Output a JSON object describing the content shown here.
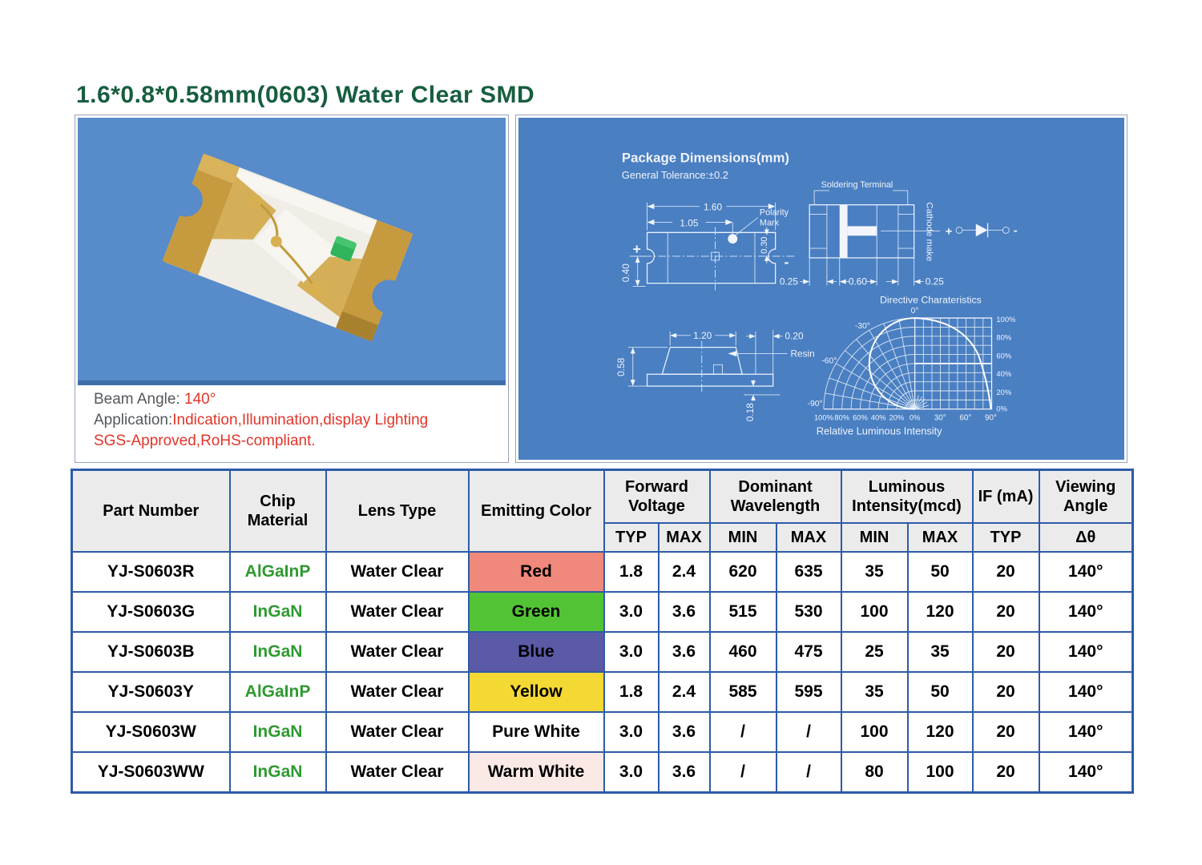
{
  "page": {
    "title": "1.6*0.8*0.58mm(0603)  Water Clear SMD"
  },
  "photo_panel": {
    "beam_label": "Beam Angle: ",
    "beam_value": "140°",
    "app_label": "Application:",
    "app_value": "Indication,Illumination,display Lighting",
    "compliance": "SGS-Approved,RoHS-compliant."
  },
  "dims": {
    "heading": "Package Dimensions(mm)",
    "tolerance": "General Tolerance:±0.2",
    "top_view": {
      "d160": "1.60",
      "d105": "1.05",
      "d040": "0.40",
      "d030": "0.30",
      "polarity": "Polarity",
      "mark": "Mark",
      "plus": "+",
      "minus": "-"
    },
    "pads": {
      "label": "Soldering Terminal",
      "d025l": "0.25",
      "d060": "0.60",
      "d025r": "0.25",
      "cathode": "Cathode make"
    },
    "circuit": {
      "plus": "+",
      "minus": "-"
    },
    "side_view": {
      "d120": "1.20",
      "d020": "0.20",
      "d058": "0.58",
      "d018": "0.18",
      "resin": "Resin"
    },
    "chart": {
      "title": "Directive Charateristics",
      "caption": "Relative Luminous Intensity",
      "a0": "0°",
      "am30": "-30°",
      "am60": "-60°",
      "am90": "-90°",
      "a30": "30°",
      "a60": "60°",
      "a90": "90°",
      "pct": [
        "100%",
        "80%",
        "60%",
        "40%",
        "20%",
        "0%"
      ]
    }
  },
  "table": {
    "headers": {
      "part": "Part Number",
      "chip": "Chip Material",
      "lens": "Lens Type",
      "color": "Emitting Color",
      "fv": "Forward Voltage",
      "dw": "Dominant Wavelength",
      "li": "Luminous Intensity(mcd)",
      "ifma": "IF (mA)",
      "va": "Viewing Angle",
      "typ": "TYP",
      "max": "MAX",
      "min": "MIN",
      "delta": "Δθ"
    },
    "rows": [
      {
        "part": "YJ-S0603R",
        "chip": "AlGaInP",
        "lens": "Water Clear",
        "color": {
          "label": "Red",
          "bg": "#F0897B"
        },
        "values": [
          "1.8",
          "2.4",
          "620",
          "635",
          "35",
          "50",
          "20",
          "140°"
        ]
      },
      {
        "part": "YJ-S0603G",
        "chip": "InGaN",
        "lens": "Water Clear",
        "color": {
          "label": "Green",
          "bg": "#52C335"
        },
        "values": [
          "3.0",
          "3.6",
          "515",
          "530",
          "100",
          "120",
          "20",
          "140°"
        ]
      },
      {
        "part": "YJ-S0603B",
        "chip": "InGaN",
        "lens": "Water Clear",
        "color": {
          "label": "Blue",
          "bg": "#5B5AA7"
        },
        "values": [
          "3.0",
          "3.6",
          "460",
          "475",
          "25",
          "35",
          "20",
          "140°"
        ]
      },
      {
        "part": "YJ-S0603Y",
        "chip": "AlGaInP",
        "lens": "Water Clear",
        "color": {
          "label": "Yellow",
          "bg": "#F4D934"
        },
        "values": [
          "1.8",
          "2.4",
          "585",
          "595",
          "35",
          "50",
          "20",
          "140°"
        ]
      },
      {
        "part": "YJ-S0603W",
        "chip": "InGaN",
        "lens": "Water Clear",
        "color": {
          "label": "Pure White",
          "bg": "#FFFFFF"
        },
        "values": [
          "3.0",
          "3.6",
          "/",
          "/",
          "100",
          "120",
          "20",
          "140°"
        ]
      },
      {
        "part": "YJ-S0603WW",
        "chip": "InGaN",
        "lens": "Water Clear",
        "color": {
          "label": "Warm White",
          "bg": "#FBE9E6"
        },
        "values": [
          "3.0",
          "3.6",
          "/",
          "/",
          "80",
          "100",
          "20",
          "140°"
        ]
      }
    ]
  }
}
